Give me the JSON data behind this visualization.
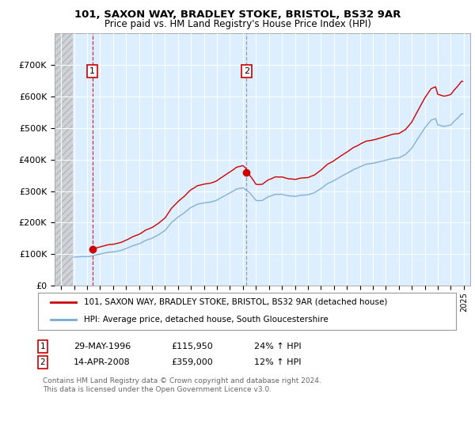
{
  "title1": "101, SAXON WAY, BRADLEY STOKE, BRISTOL, BS32 9AR",
  "title2": "Price paid vs. HM Land Registry's House Price Index (HPI)",
  "ylim": [
    0,
    800000
  ],
  "yticks": [
    0,
    100000,
    200000,
    300000,
    400000,
    500000,
    600000,
    700000
  ],
  "ytick_labels": [
    "£0",
    "£100K",
    "£200K",
    "£300K",
    "£400K",
    "£500K",
    "£600K",
    "£700K"
  ],
  "legend_line1": "101, SAXON WAY, BRADLEY STOKE, BRISTOL, BS32 9AR (detached house)",
  "legend_line2": "HPI: Average price, detached house, South Gloucestershire",
  "annotation1_label": "1",
  "annotation1_date": "29-MAY-1996",
  "annotation1_price": "£115,950",
  "annotation1_hpi": "24% ↑ HPI",
  "annotation2_label": "2",
  "annotation2_date": "14-APR-2008",
  "annotation2_price": "£359,000",
  "annotation2_hpi": "12% ↑ HPI",
  "footer": "Contains HM Land Registry data © Crown copyright and database right 2024.\nThis data is licensed under the Open Government Licence v3.0.",
  "line_color": "#cc0000",
  "hpi_color": "#7aaad0",
  "sale1_x": 1996.41,
  "sale1_y": 115950,
  "sale2_x": 2008.28,
  "sale2_y": 359000,
  "xlim_left": 1993.5,
  "xlim_right": 2025.5,
  "hatch_end": 1994.92,
  "background_color": "#ddeeff"
}
